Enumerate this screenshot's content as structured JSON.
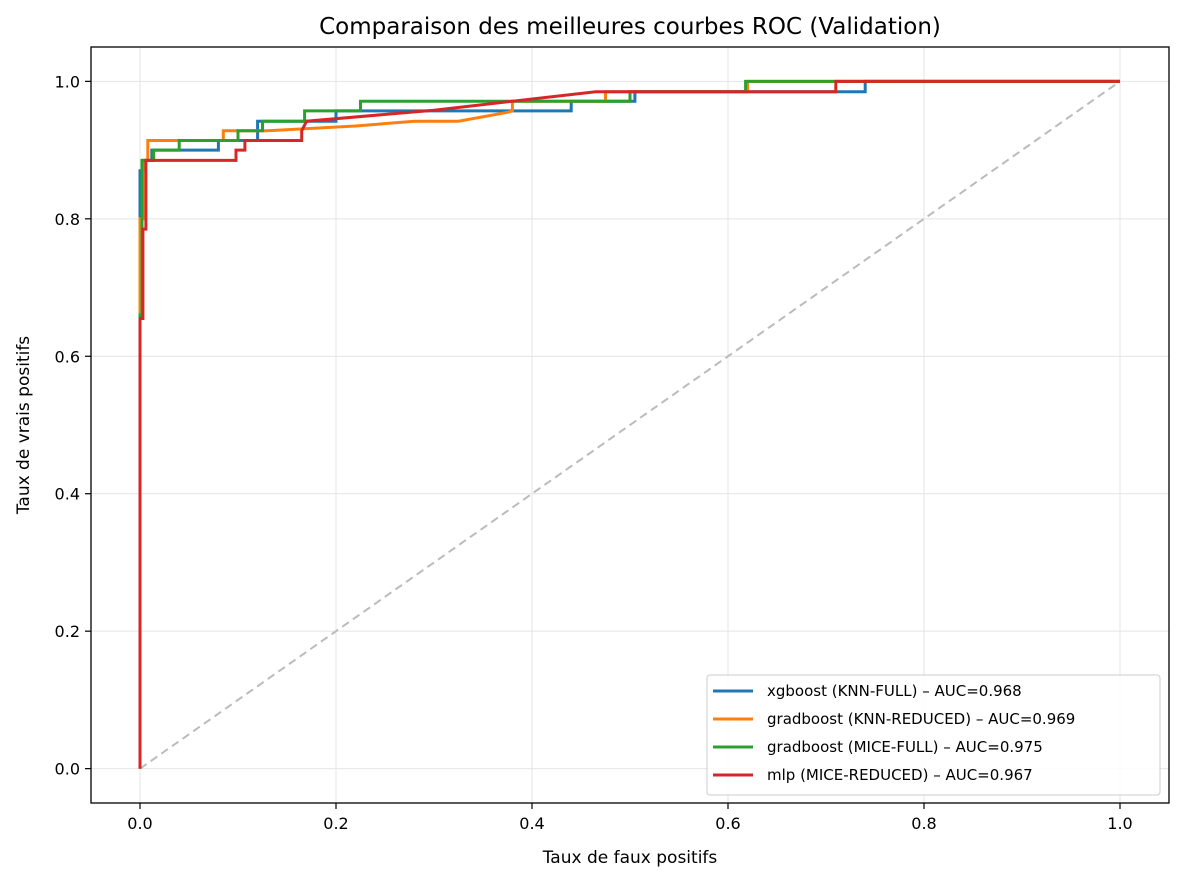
{
  "chart_data": {
    "type": "line",
    "title": "Comparaison des meilleures courbes ROC (Validation)",
    "xlabel": "Taux de faux positifs",
    "ylabel": "Taux de vrais positifs",
    "xlim": [
      -0.05,
      1.05
    ],
    "ylim": [
      -0.05,
      1.05
    ],
    "xticks": [
      0.0,
      0.2,
      0.4,
      0.6,
      0.8,
      1.0
    ],
    "yticks": [
      0.0,
      0.2,
      0.4,
      0.6,
      0.8,
      1.0
    ],
    "xtick_labels": [
      "0.0",
      "0.2",
      "0.4",
      "0.6",
      "0.8",
      "1.0"
    ],
    "ytick_labels": [
      "0.0",
      "0.2",
      "0.4",
      "0.6",
      "0.8",
      "1.0"
    ],
    "grid": true,
    "legend_position": "lower-right",
    "diagonal": {
      "x": [
        0,
        1
      ],
      "y": [
        0,
        1
      ],
      "color": "#bbbbbb",
      "style": "dashed"
    },
    "series": [
      {
        "name": "xgboost (KNN-FULL) – AUC=0.968",
        "color": "#1f77b4",
        "x": [
          0,
          0,
          0.003,
          0.003,
          0.012,
          0.012,
          0.08,
          0.08,
          0.12,
          0.12,
          0.2,
          0.2,
          0.44,
          0.44,
          0.505,
          0.505,
          0.74,
          0.74,
          1.0
        ],
        "y": [
          0,
          0.87,
          0.87,
          0.885,
          0.885,
          0.9,
          0.9,
          0.914,
          0.914,
          0.942,
          0.942,
          0.957,
          0.957,
          0.971,
          0.971,
          0.985,
          0.985,
          1.0,
          1.0
        ]
      },
      {
        "name": "gradboost (KNN-REDUCED) – AUC=0.969",
        "color": "#ff7f0e",
        "x": [
          0,
          0,
          0.003,
          0.003,
          0.008,
          0.008,
          0.085,
          0.085,
          0.13,
          0.22,
          0.28,
          0.325,
          0.375,
          0.38,
          0.38,
          0.475,
          0.475,
          0.62,
          0.62,
          1.0
        ],
        "y": [
          0,
          0.8,
          0.8,
          0.885,
          0.885,
          0.914,
          0.914,
          0.928,
          0.928,
          0.935,
          0.942,
          0.942,
          0.955,
          0.957,
          0.971,
          0.971,
          0.985,
          0.985,
          1.0,
          1.0
        ]
      },
      {
        "name": "gradboost (MICE-FULL) – AUC=0.975",
        "color": "#2ca02c",
        "x": [
          0,
          0,
          0.002,
          0.002,
          0.014,
          0.014,
          0.04,
          0.04,
          0.1,
          0.1,
          0.125,
          0.125,
          0.168,
          0.168,
          0.225,
          0.225,
          0.5,
          0.5,
          0.618,
          0.618,
          1.0
        ],
        "y": [
          0,
          0.66,
          0.66,
          0.885,
          0.885,
          0.9,
          0.9,
          0.914,
          0.914,
          0.928,
          0.928,
          0.942,
          0.942,
          0.957,
          0.957,
          0.971,
          0.971,
          0.985,
          0.985,
          1.0,
          1.0
        ]
      },
      {
        "name": "mlp (MICE-REDUCED) – AUC=0.967",
        "color": "#d62728",
        "x": [
          0,
          0,
          0.003,
          0.003,
          0.006,
          0.006,
          0.098,
          0.098,
          0.107,
          0.107,
          0.165,
          0.165,
          0.17,
          0.3,
          0.465,
          0.71,
          0.71,
          1.0
        ],
        "y": [
          0,
          0.655,
          0.655,
          0.785,
          0.785,
          0.885,
          0.885,
          0.9,
          0.9,
          0.914,
          0.914,
          0.928,
          0.942,
          0.958,
          0.985,
          0.985,
          1.0,
          1.0
        ]
      }
    ]
  }
}
